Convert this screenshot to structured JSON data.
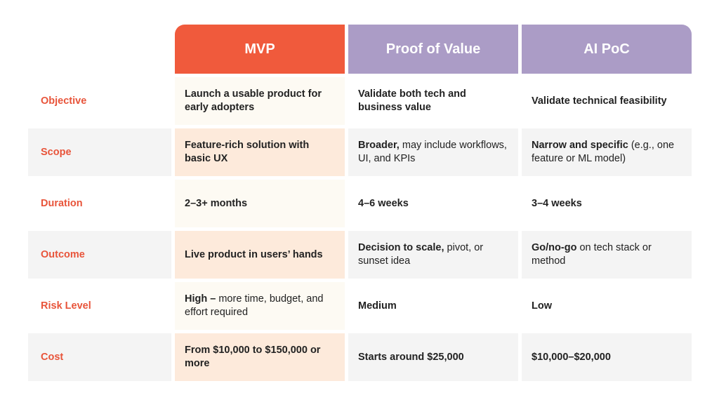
{
  "headers": {
    "mvp": "MVP",
    "pov": "Proof of Value",
    "ai": "AI PoC"
  },
  "colors": {
    "mvp_header": "#f05a3c",
    "pov_header": "#ab9cc6",
    "ai_header": "#ab9cc6",
    "row_label": "#e8543a",
    "mvp_shade": "#fdeadb",
    "row_shade": "#f4f4f4"
  },
  "rows": [
    {
      "label": "Objective",
      "mvp": {
        "bold": "Launch a usable product for early adopters",
        "rest": ""
      },
      "pov": {
        "bold": "Validate both tech and business value",
        "rest": ""
      },
      "ai": {
        "bold": "Validate technical feasibility",
        "rest": ""
      }
    },
    {
      "label": "Scope",
      "mvp": {
        "bold": "Feature-rich solution with basic UX",
        "rest": ""
      },
      "pov": {
        "bold": "Broader,",
        "rest": " may include workflows, UI, and KPIs"
      },
      "ai": {
        "bold": "Narrow and specific",
        "rest": " (e.g., one feature or ML model)"
      }
    },
    {
      "label": "Duration",
      "mvp": {
        "bold": "2–3+ months",
        "rest": ""
      },
      "pov": {
        "bold": "4–6 weeks",
        "rest": ""
      },
      "ai": {
        "bold": "3–4 weeks",
        "rest": ""
      }
    },
    {
      "label": "Outcome",
      "mvp": {
        "bold": "Live product in users’ hands",
        "rest": ""
      },
      "pov": {
        "bold": "Decision to scale,",
        "rest": " pivot, or sunset idea"
      },
      "ai": {
        "bold": "Go/no-go",
        "rest": " on tech stack or method"
      }
    },
    {
      "label": "Risk Level",
      "mvp": {
        "bold": "High –",
        "rest": " more time, budget, and effort required"
      },
      "pov": {
        "bold": "Medium",
        "rest": ""
      },
      "ai": {
        "bold": "Low",
        "rest": ""
      }
    },
    {
      "label": "Cost",
      "mvp": {
        "bold": "From $10,000 to $150,000 or more",
        "rest": ""
      },
      "pov": {
        "bold": "Starts around $25,000",
        "rest": ""
      },
      "ai": {
        "bold": "$10,000–$20,000",
        "rest": ""
      }
    }
  ]
}
